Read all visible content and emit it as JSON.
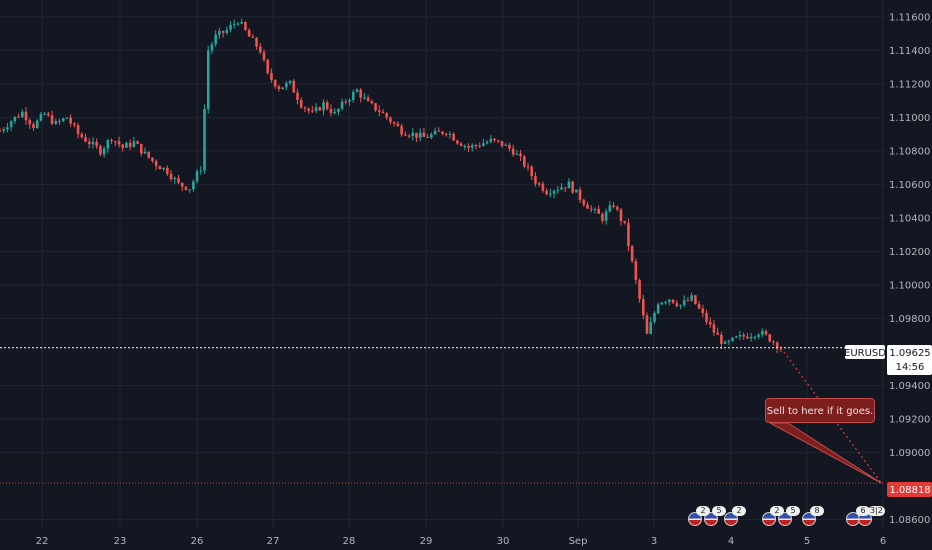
{
  "symbol_label": "EURUSD",
  "current_price_label": "1.09625",
  "countdown_label": "14:56",
  "target_price_label": "1.08818",
  "annotation_text": "Sell to here if it goes.",
  "colors": {
    "background": "#131722",
    "grid": "#1f2433",
    "up_candle": "#26a69a",
    "down_candle": "#ef5350",
    "axis_text": "#b2b5be",
    "current_price_line": "#ffffff",
    "target_line": "#e53935",
    "projection_line": "#e53935"
  },
  "events": [
    {
      "counts": [
        "2",
        "5",
        "2"
      ]
    },
    {
      "counts": [
        "2",
        "5",
        "8"
      ]
    },
    {
      "counts": [
        "6",
        "3|2"
      ]
    }
  ],
  "chart_data": {
    "type": "candlestick",
    "title": "",
    "xlabel": "",
    "ylabel": "",
    "ylim": [
      1.0855,
      1.117
    ],
    "x_tick_labels": [
      "22",
      "23",
      "26",
      "27",
      "28",
      "29",
      "30",
      "Sep",
      "3",
      "4",
      "5",
      "6"
    ],
    "y_tick_labels": [
      "1.11600",
      "1.11400",
      "1.11200",
      "1.11000",
      "1.10800",
      "1.10600",
      "1.10400",
      "1.10200",
      "1.10000",
      "1.09800",
      "1.09400",
      "1.09200",
      "1.09000",
      "1.08600"
    ],
    "current_price": 1.09625,
    "target_price": 1.08818,
    "price_path": [
      [
        0,
        1.1092
      ],
      [
        3,
        1.1098
      ],
      [
        6,
        1.1103
      ],
      [
        9,
        1.1095
      ],
      [
        12,
        1.1102
      ],
      [
        15,
        1.1096
      ],
      [
        18,
        1.11
      ],
      [
        21,
        1.109
      ],
      [
        24,
        1.1085
      ],
      [
        27,
        1.108
      ],
      [
        30,
        1.1088
      ],
      [
        33,
        1.1082
      ],
      [
        36,
        1.1085
      ],
      [
        39,
        1.1078
      ],
      [
        42,
        1.1072
      ],
      [
        45,
        1.1068
      ],
      [
        48,
        1.106
      ],
      [
        51,
        1.1058
      ],
      [
        54,
        1.107
      ],
      [
        56,
        1.114
      ],
      [
        58,
        1.1148
      ],
      [
        61,
        1.1152
      ],
      [
        64,
        1.1158
      ],
      [
        67,
        1.1148
      ],
      [
        70,
        1.114
      ],
      [
        72,
        1.1125
      ],
      [
        75,
        1.1118
      ],
      [
        78,
        1.112
      ],
      [
        81,
        1.1108
      ],
      [
        84,
        1.1102
      ],
      [
        87,
        1.1108
      ],
      [
        90,
        1.1102
      ],
      [
        93,
        1.111
      ],
      [
        96,
        1.1116
      ],
      [
        99,
        1.1108
      ],
      [
        102,
        1.1104
      ],
      [
        105,
        1.1098
      ],
      [
        108,
        1.1092
      ],
      [
        111,
        1.109
      ],
      [
        114,
        1.1088
      ],
      [
        117,
        1.109
      ],
      [
        120,
        1.1092
      ],
      [
        123,
        1.1086
      ],
      [
        126,
        1.1082
      ],
      [
        129,
        1.1084
      ],
      [
        132,
        1.1086
      ],
      [
        135,
        1.1084
      ],
      [
        138,
        1.108
      ],
      [
        141,
        1.1072
      ],
      [
        144,
        1.1062
      ],
      [
        147,
        1.1056
      ],
      [
        150,
        1.1058
      ],
      [
        153,
        1.106
      ],
      [
        156,
        1.1052
      ],
      [
        159,
        1.1045
      ],
      [
        162,
        1.104
      ],
      [
        165,
        1.1048
      ],
      [
        168,
        1.1035
      ],
      [
        171,
        1.1002
      ],
      [
        174,
        1.097
      ],
      [
        177,
        1.099
      ],
      [
        180,
        1.0992
      ],
      [
        183,
        1.0988
      ],
      [
        186,
        1.0992
      ],
      [
        189,
        1.0982
      ],
      [
        192,
        1.0972
      ],
      [
        195,
        1.0964
      ],
      [
        198,
        1.0968
      ],
      [
        201,
        1.097
      ],
      [
        204,
        1.0972
      ],
      [
        207,
        1.0968
      ],
      [
        210,
        1.09625
      ]
    ],
    "projection": [
      [
        210,
        1.09625
      ],
      [
        237,
        1.08818
      ]
    ]
  }
}
